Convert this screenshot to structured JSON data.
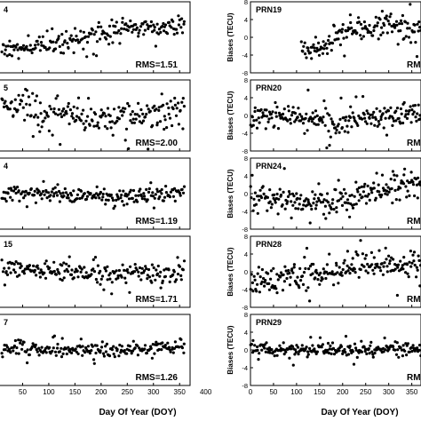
{
  "figure": {
    "xlabel": "Day Of Year (DOY)",
    "ylabel": "Biases (TECU)",
    "xticks": [
      0,
      50,
      100,
      150,
      200,
      250,
      300,
      350,
      400
    ],
    "xlim": [
      0,
      370
    ]
  },
  "chart_data": [
    {
      "type": "scatter",
      "panel_label": "4",
      "rms_label": "RMS=1.51",
      "ylim": [
        -8,
        8
      ],
      "yticks": [],
      "x_range": [
        10,
        360
      ],
      "trend": [
        [
          10,
          -2.2
        ],
        [
          100,
          -1.6
        ],
        [
          180,
          0.2
        ],
        [
          250,
          2.2
        ],
        [
          360,
          2.4
        ]
      ],
      "scatter": 1.5,
      "seed": 11
    },
    {
      "type": "scatter",
      "panel_label": "5",
      "rms_label": "RMS=2.00",
      "ylim": [
        -8,
        8
      ],
      "yticks": [],
      "x_range": [
        10,
        360
      ],
      "trend": [
        [
          10,
          1.8
        ],
        [
          100,
          0.6
        ],
        [
          180,
          -0.6
        ],
        [
          250,
          -1.2
        ],
        [
          330,
          1.0
        ],
        [
          360,
          1.2
        ]
      ],
      "scatter": 2.2,
      "seed": 22
    },
    {
      "type": "scatter",
      "panel_label": "4",
      "rms_label": "RMS=1.19",
      "ylim": [
        -8,
        8
      ],
      "yticks": [],
      "x_range": [
        10,
        360
      ],
      "trend": [
        [
          10,
          0.2
        ],
        [
          150,
          -0.3
        ],
        [
          250,
          -0.7
        ],
        [
          360,
          0.4
        ]
      ],
      "scatter": 1.2,
      "seed": 33
    },
    {
      "type": "scatter",
      "panel_label": "15",
      "rms_label": "RMS=1.71",
      "ylim": [
        -8,
        8
      ],
      "yticks": [],
      "x_range": [
        10,
        360
      ],
      "trend": [
        [
          10,
          0.6
        ],
        [
          150,
          0.4
        ],
        [
          250,
          -0.6
        ],
        [
          360,
          0.0
        ]
      ],
      "scatter": 1.8,
      "seed": 44
    },
    {
      "type": "scatter",
      "panel_label": "7",
      "rms_label": "RMS=1.26",
      "ylim": [
        -8,
        8
      ],
      "yticks": [],
      "x_range": [
        10,
        360
      ],
      "trend": [
        [
          10,
          0.6
        ],
        [
          150,
          -0.4
        ],
        [
          250,
          0.2
        ],
        [
          360,
          0.8
        ]
      ],
      "scatter": 1.1,
      "seed": 55
    },
    {
      "type": "scatter",
      "panel_label": "PRN19",
      "rms_label": "RMS",
      "ylim": [
        -8,
        8
      ],
      "yticks": [
        -8,
        -4,
        0,
        4,
        8
      ],
      "x_range": [
        110,
        370
      ],
      "trend": [
        [
          110,
          -3.2
        ],
        [
          160,
          -1.8
        ],
        [
          200,
          0.6
        ],
        [
          250,
          2.2
        ],
        [
          300,
          2.8
        ],
        [
          370,
          1.6
        ]
      ],
      "scatter": 1.8,
      "seed": 66
    },
    {
      "type": "scatter",
      "panel_label": "PRN20",
      "rms_label": "RM",
      "ylim": [
        -8,
        8
      ],
      "yticks": [
        -8,
        -4,
        0,
        4,
        8
      ],
      "x_range": [
        0,
        370
      ],
      "trend": [
        [
          0,
          0.2
        ],
        [
          120,
          -0.6
        ],
        [
          180,
          -1.6
        ],
        [
          250,
          -0.4
        ],
        [
          370,
          0.6
        ]
      ],
      "scatter": 2.0,
      "seed": 77
    },
    {
      "type": "scatter",
      "panel_label": "PRN24",
      "rms_label": "RMS",
      "ylim": [
        -8,
        8
      ],
      "yticks": [
        -8,
        -4,
        0,
        4,
        8
      ],
      "x_range": [
        0,
        370
      ],
      "trend": [
        [
          0,
          -0.6
        ],
        [
          140,
          -2.2
        ],
        [
          220,
          -0.8
        ],
        [
          300,
          1.6
        ],
        [
          370,
          2.2
        ]
      ],
      "scatter": 2.0,
      "seed": 88
    },
    {
      "type": "scatter",
      "panel_label": "PRN28",
      "rms_label": "RMS",
      "ylim": [
        -8,
        8
      ],
      "yticks": [
        -8,
        -4,
        0,
        4,
        8
      ],
      "x_range": [
        0,
        370
      ],
      "trend": [
        [
          0,
          -2.0
        ],
        [
          120,
          -1.0
        ],
        [
          200,
          1.0
        ],
        [
          300,
          2.2
        ],
        [
          370,
          0.6
        ]
      ],
      "scatter": 2.0,
      "seed": 99
    },
    {
      "type": "scatter",
      "panel_label": "PRN29",
      "rms_label": "RMS",
      "ylim": [
        -8,
        8
      ],
      "yticks": [
        -8,
        -4,
        0,
        4,
        8
      ],
      "x_range": [
        0,
        370
      ],
      "trend": [
        [
          0,
          0.2
        ],
        [
          180,
          0.0
        ],
        [
          370,
          0.4
        ]
      ],
      "scatter": 1.0,
      "seed": 101
    }
  ]
}
